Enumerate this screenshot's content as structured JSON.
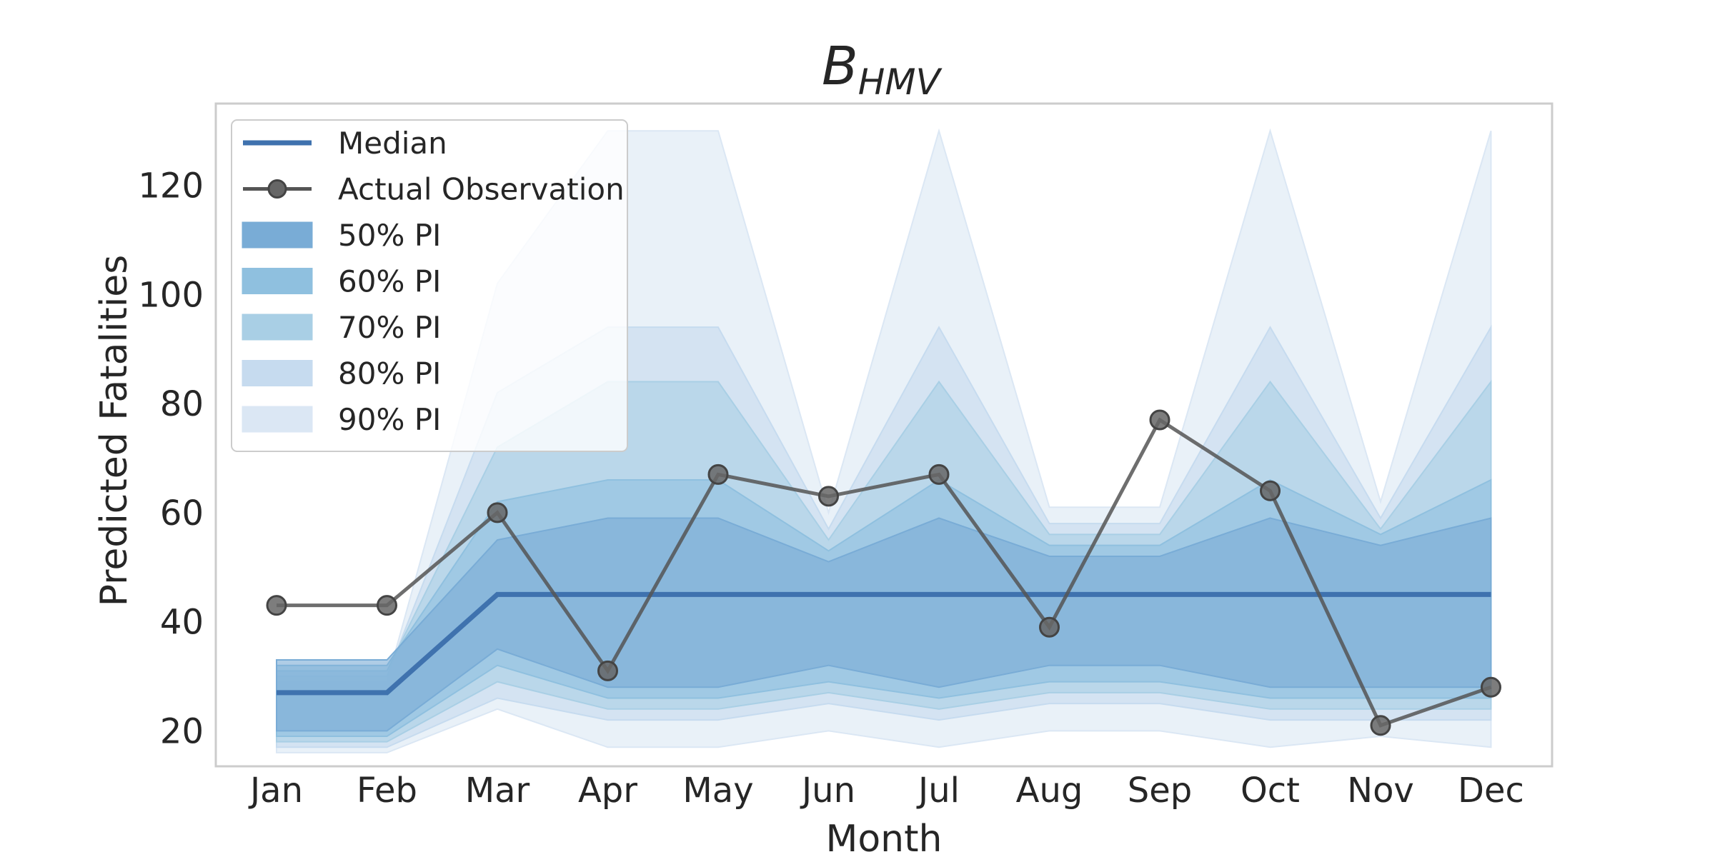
{
  "chart_data": {
    "type": "line",
    "title": {
      "base": "B",
      "subscript": "HMV"
    },
    "xlabel": "Month",
    "ylabel": "Predicted Fatalities",
    "categories": [
      "Jan",
      "Feb",
      "Mar",
      "Apr",
      "May",
      "Jun",
      "Jul",
      "Aug",
      "Sep",
      "Oct",
      "Nov",
      "Dec"
    ],
    "ylim": [
      13.5,
      135
    ],
    "yticks": [
      20,
      40,
      60,
      80,
      100,
      120
    ],
    "grid": false,
    "legend_position": "top-left",
    "median": {
      "name": "Median",
      "color": "#3f72ae",
      "values": [
        27,
        27,
        45,
        45,
        45,
        45,
        45,
        45,
        45,
        45,
        45,
        45
      ]
    },
    "observation": {
      "name": "Actual Observation",
      "color": "#555555",
      "values": [
        43,
        43,
        60,
        31,
        67,
        63,
        67,
        39,
        77,
        64,
        21,
        28
      ]
    },
    "intervals": [
      {
        "name": "90% PI",
        "color": "#dbe7f4",
        "lower": [
          16,
          16,
          24,
          17,
          17,
          20,
          17,
          20,
          20,
          17,
          19,
          17
        ],
        "upper": [
          29,
          29,
          102,
          130,
          130,
          60,
          130,
          61,
          61,
          130,
          62,
          130
        ]
      },
      {
        "name": "80% PI",
        "color": "#c6dbef",
        "lower": [
          17,
          17,
          26,
          22,
          22,
          25,
          22,
          25,
          25,
          22,
          22,
          22
        ],
        "upper": [
          30,
          30,
          82,
          94,
          94,
          57,
          94,
          58,
          58,
          94,
          59,
          94
        ]
      },
      {
        "name": "70% PI",
        "color": "#a9cfe5",
        "lower": [
          18,
          18,
          29,
          24,
          24,
          27,
          24,
          27,
          27,
          24,
          24,
          24
        ],
        "upper": [
          31,
          31,
          72,
          84,
          84,
          55,
          84,
          56,
          56,
          84,
          57,
          84
        ]
      },
      {
        "name": "60% PI",
        "color": "#8fc0df",
        "lower": [
          19,
          19,
          32,
          26,
          26,
          29,
          26,
          29,
          29,
          26,
          26,
          26
        ],
        "upper": [
          32,
          32,
          62,
          66,
          66,
          53,
          66,
          54,
          54,
          66,
          56,
          66
        ]
      },
      {
        "name": "50% PI",
        "color": "#79acd6",
        "lower": [
          20,
          20,
          35,
          28,
          28,
          32,
          28,
          32,
          32,
          28,
          28,
          28
        ],
        "upper": [
          33,
          33,
          55,
          59,
          59,
          51,
          59,
          52,
          52,
          59,
          54,
          59
        ]
      }
    ]
  }
}
